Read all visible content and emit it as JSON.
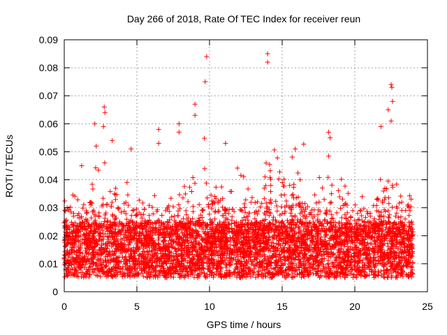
{
  "chart_data": {
    "type": "scatter",
    "title": "Day 266 of 2018, Rate Of TEC Index for receiver reun",
    "xlabel": "GPS time / hours",
    "ylabel": "ROTI / TECUs",
    "xlim": [
      0,
      25
    ],
    "ylim": [
      0,
      0.09
    ],
    "xticks": [
      0,
      5,
      10,
      15,
      20,
      25
    ],
    "xtick_labels": [
      "0",
      "5",
      "10",
      "15",
      "20",
      "25"
    ],
    "yticks": [
      0,
      0.01,
      0.02,
      0.03,
      0.04,
      0.05,
      0.06,
      0.07,
      0.08,
      0.09
    ],
    "ytick_labels": [
      "0",
      "0.01",
      "0.02",
      "0.03",
      "0.04",
      "0.05",
      "0.06",
      "0.07",
      "0.08",
      "0.09"
    ],
    "grid": true,
    "marker": "+",
    "series": [
      {
        "name": "ROTI",
        "color": "#ff0000",
        "x_range": [
          0,
          24
        ],
        "baseline_range": [
          0.005,
          0.025
        ],
        "notable_points": [
          {
            "x": 0.2,
            "y": 0.03
          },
          {
            "x": 1.2,
            "y": 0.045
          },
          {
            "x": 2.1,
            "y": 0.06
          },
          {
            "x": 2.2,
            "y": 0.052
          },
          {
            "x": 2.7,
            "y": 0.059
          },
          {
            "x": 2.75,
            "y": 0.066
          },
          {
            "x": 2.8,
            "y": 0.064
          },
          {
            "x": 3.3,
            "y": 0.054
          },
          {
            "x": 4.6,
            "y": 0.051
          },
          {
            "x": 6.5,
            "y": 0.058
          },
          {
            "x": 6.5,
            "y": 0.053
          },
          {
            "x": 7.9,
            "y": 0.06
          },
          {
            "x": 7.9,
            "y": 0.057
          },
          {
            "x": 9.0,
            "y": 0.067
          },
          {
            "x": 9.0,
            "y": 0.063
          },
          {
            "x": 9.7,
            "y": 0.075
          },
          {
            "x": 9.8,
            "y": 0.084
          },
          {
            "x": 11.1,
            "y": 0.053
          },
          {
            "x": 14.0,
            "y": 0.085
          },
          {
            "x": 14.0,
            "y": 0.082
          },
          {
            "x": 15.9,
            "y": 0.051
          },
          {
            "x": 18.2,
            "y": 0.057
          },
          {
            "x": 18.3,
            "y": 0.055
          },
          {
            "x": 21.8,
            "y": 0.059
          },
          {
            "x": 22.3,
            "y": 0.065
          },
          {
            "x": 22.5,
            "y": 0.074
          },
          {
            "x": 22.55,
            "y": 0.073
          },
          {
            "x": 22.6,
            "y": 0.068
          },
          {
            "x": 22.5,
            "y": 0.061
          }
        ]
      }
    ]
  }
}
